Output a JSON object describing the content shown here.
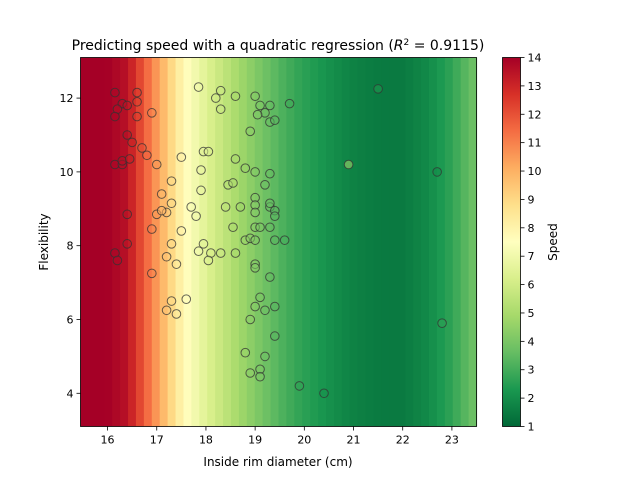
{
  "chart_data": {
    "type": "scatter",
    "title": "Predicting speed with a quadratic regression (R² = 0.9115)",
    "title_prefix": "Predicting speed with a quadratic regression (",
    "title_r2_label": "R",
    "title_r2_exp": "2",
    "title_r2_value": " = 0.9115)",
    "xlabel": "Inside rim diameter (cm)",
    "ylabel": "Flexibility",
    "colorbar_label": "Speed",
    "xlim": [
      15.45,
      23.5
    ],
    "ylim": [
      3.1,
      13.1
    ],
    "clim": [
      1,
      14
    ],
    "colormap": "RdYlGn_r",
    "xticks": [
      16,
      17,
      18,
      19,
      20,
      21,
      22,
      23
    ],
    "yticks": [
      4,
      6,
      8,
      10,
      12
    ],
    "cticks": [
      1,
      2,
      3,
      4,
      5,
      6,
      7,
      8,
      9,
      10,
      11,
      12,
      13,
      14
    ],
    "colormap_stops": [
      "#006837",
      "#1a9850",
      "#66bd63",
      "#a6d96a",
      "#d9ef8b",
      "#ffffbf",
      "#fee08b",
      "#fdae61",
      "#f46d43",
      "#d73027",
      "#a50026"
    ],
    "model": {
      "description": "speed varies with inside rim diameter only (background bands)",
      "diameter": [
        15.45,
        16.0,
        16.4,
        16.6,
        16.9,
        17.2,
        17.5,
        17.8,
        18.1,
        18.4,
        18.7,
        19.0,
        19.3,
        19.6,
        19.9,
        20.2,
        20.6,
        21.0,
        21.5,
        22.0,
        22.5,
        23.0,
        23.5
      ],
      "speed": [
        14,
        14,
        13.5,
        12.5,
        11,
        9.5,
        8,
        7,
        6.2,
        5.5,
        4.8,
        4.2,
        3.6,
        3.1,
        2.7,
        2.4,
        2.0,
        1.7,
        1.5,
        1.5,
        1.9,
        2.7,
        3.9
      ]
    },
    "points": [
      {
        "x": 16.15,
        "y": 12.15,
        "speed": 13.8
      },
      {
        "x": 16.3,
        "y": 11.85,
        "speed": 13.7
      },
      {
        "x": 16.6,
        "y": 12.15,
        "speed": 12.5
      },
      {
        "x": 16.6,
        "y": 11.9,
        "speed": 12.4
      },
      {
        "x": 16.2,
        "y": 11.7,
        "speed": 13.6
      },
      {
        "x": 16.4,
        "y": 11.8,
        "speed": 13.4
      },
      {
        "x": 16.15,
        "y": 11.5,
        "speed": 13.8
      },
      {
        "x": 16.6,
        "y": 11.5,
        "speed": 12.4
      },
      {
        "x": 16.9,
        "y": 11.6,
        "speed": 11.0
      },
      {
        "x": 16.4,
        "y": 11.0,
        "speed": 13.5
      },
      {
        "x": 16.5,
        "y": 10.8,
        "speed": 13.0
      },
      {
        "x": 16.7,
        "y": 10.65,
        "speed": 12.0
      },
      {
        "x": 16.8,
        "y": 10.45,
        "speed": 11.6
      },
      {
        "x": 16.15,
        "y": 10.2,
        "speed": 13.8
      },
      {
        "x": 16.3,
        "y": 10.2,
        "speed": 13.6
      },
      {
        "x": 16.3,
        "y": 10.3,
        "speed": 13.6
      },
      {
        "x": 16.45,
        "y": 10.35,
        "speed": 13.2
      },
      {
        "x": 17.0,
        "y": 10.2,
        "speed": 10.5
      },
      {
        "x": 17.5,
        "y": 10.4,
        "speed": 8.0
      },
      {
        "x": 17.3,
        "y": 9.75,
        "speed": 9.0
      },
      {
        "x": 17.1,
        "y": 9.4,
        "speed": 10.0
      },
      {
        "x": 17.3,
        "y": 9.15,
        "speed": 9.0
      },
      {
        "x": 17.0,
        "y": 8.85,
        "speed": 10.5
      },
      {
        "x": 17.2,
        "y": 8.9,
        "speed": 9.5
      },
      {
        "x": 17.1,
        "y": 8.95,
        "speed": 10.0
      },
      {
        "x": 16.4,
        "y": 8.85,
        "speed": 13.4
      },
      {
        "x": 16.9,
        "y": 8.45,
        "speed": 11.0
      },
      {
        "x": 17.5,
        "y": 8.4,
        "speed": 8.0
      },
      {
        "x": 17.3,
        "y": 8.05,
        "speed": 9.0
      },
      {
        "x": 16.4,
        "y": 8.05,
        "speed": 13.4
      },
      {
        "x": 16.15,
        "y": 7.8,
        "speed": 13.8
      },
      {
        "x": 16.2,
        "y": 7.6,
        "speed": 13.7
      },
      {
        "x": 17.2,
        "y": 7.7,
        "speed": 9.5
      },
      {
        "x": 17.4,
        "y": 7.5,
        "speed": 8.5
      },
      {
        "x": 16.9,
        "y": 7.25,
        "speed": 11.0
      },
      {
        "x": 17.3,
        "y": 6.5,
        "speed": 9.0
      },
      {
        "x": 17.6,
        "y": 6.55,
        "speed": 7.6
      },
      {
        "x": 17.2,
        "y": 6.25,
        "speed": 9.5
      },
      {
        "x": 17.4,
        "y": 6.15,
        "speed": 8.5
      },
      {
        "x": 17.85,
        "y": 12.3,
        "speed": 7.0
      },
      {
        "x": 18.2,
        "y": 12.0,
        "speed": 6.0
      },
      {
        "x": 18.3,
        "y": 12.2,
        "speed": 5.8
      },
      {
        "x": 18.6,
        "y": 12.05,
        "speed": 5.0
      },
      {
        "x": 18.3,
        "y": 11.7,
        "speed": 5.8
      },
      {
        "x": 19.0,
        "y": 12.05,
        "speed": 4.2
      },
      {
        "x": 19.1,
        "y": 11.8,
        "speed": 4.0
      },
      {
        "x": 19.2,
        "y": 11.6,
        "speed": 3.8
      },
      {
        "x": 19.3,
        "y": 11.8,
        "speed": 3.6
      },
      {
        "x": 19.7,
        "y": 11.85,
        "speed": 3.0
      },
      {
        "x": 19.05,
        "y": 11.55,
        "speed": 4.1
      },
      {
        "x": 19.3,
        "y": 11.35,
        "speed": 3.6
      },
      {
        "x": 19.4,
        "y": 11.4,
        "speed": 3.4
      },
      {
        "x": 18.9,
        "y": 11.1,
        "speed": 4.4
      },
      {
        "x": 17.95,
        "y": 10.55,
        "speed": 6.5
      },
      {
        "x": 18.05,
        "y": 10.55,
        "speed": 6.3
      },
      {
        "x": 18.6,
        "y": 10.35,
        "speed": 5.0
      },
      {
        "x": 18.8,
        "y": 10.1,
        "speed": 4.6
      },
      {
        "x": 19.0,
        "y": 10.0,
        "speed": 4.2
      },
      {
        "x": 19.3,
        "y": 9.95,
        "speed": 3.6
      },
      {
        "x": 17.9,
        "y": 10.05,
        "speed": 6.8
      },
      {
        "x": 18.45,
        "y": 9.65,
        "speed": 5.3
      },
      {
        "x": 18.55,
        "y": 9.7,
        "speed": 5.1
      },
      {
        "x": 17.9,
        "y": 9.5,
        "speed": 6.8
      },
      {
        "x": 19.2,
        "y": 9.65,
        "speed": 3.8
      },
      {
        "x": 19.0,
        "y": 9.3,
        "speed": 4.2
      },
      {
        "x": 17.7,
        "y": 9.05,
        "speed": 7.2
      },
      {
        "x": 18.4,
        "y": 9.05,
        "speed": 5.5
      },
      {
        "x": 18.7,
        "y": 9.05,
        "speed": 4.8
      },
      {
        "x": 19.0,
        "y": 9.1,
        "speed": 4.2
      },
      {
        "x": 19.3,
        "y": 9.05,
        "speed": 3.6
      },
      {
        "x": 19.3,
        "y": 9.15,
        "speed": 3.6
      },
      {
        "x": 19.4,
        "y": 8.95,
        "speed": 3.4
      },
      {
        "x": 19.0,
        "y": 8.9,
        "speed": 4.2
      },
      {
        "x": 19.4,
        "y": 8.8,
        "speed": 3.4
      },
      {
        "x": 17.8,
        "y": 8.8,
        "speed": 7.0
      },
      {
        "x": 18.55,
        "y": 8.5,
        "speed": 5.1
      },
      {
        "x": 19.0,
        "y": 8.5,
        "speed": 4.2
      },
      {
        "x": 19.1,
        "y": 8.5,
        "speed": 4.0
      },
      {
        "x": 19.3,
        "y": 8.5,
        "speed": 3.6
      },
      {
        "x": 18.8,
        "y": 8.15,
        "speed": 4.6
      },
      {
        "x": 18.9,
        "y": 8.2,
        "speed": 4.4
      },
      {
        "x": 19.0,
        "y": 8.15,
        "speed": 4.2
      },
      {
        "x": 19.4,
        "y": 8.15,
        "speed": 3.4
      },
      {
        "x": 19.6,
        "y": 8.15,
        "speed": 3.1
      },
      {
        "x": 17.95,
        "y": 8.05,
        "speed": 6.5
      },
      {
        "x": 17.85,
        "y": 7.85,
        "speed": 7.0
      },
      {
        "x": 18.1,
        "y": 7.8,
        "speed": 6.2
      },
      {
        "x": 18.3,
        "y": 7.8,
        "speed": 5.8
      },
      {
        "x": 18.6,
        "y": 7.8,
        "speed": 5.0
      },
      {
        "x": 18.05,
        "y": 7.6,
        "speed": 6.3
      },
      {
        "x": 19.0,
        "y": 7.5,
        "speed": 4.2
      },
      {
        "x": 19.0,
        "y": 7.4,
        "speed": 4.2
      },
      {
        "x": 19.3,
        "y": 7.15,
        "speed": 3.6
      },
      {
        "x": 19.1,
        "y": 6.6,
        "speed": 4.0
      },
      {
        "x": 19.0,
        "y": 6.35,
        "speed": 4.2
      },
      {
        "x": 19.2,
        "y": 6.25,
        "speed": 3.8
      },
      {
        "x": 19.4,
        "y": 6.35,
        "speed": 3.4
      },
      {
        "x": 18.9,
        "y": 6.0,
        "speed": 4.4
      },
      {
        "x": 19.4,
        "y": 5.55,
        "speed": 3.4
      },
      {
        "x": 18.8,
        "y": 5.1,
        "speed": 4.6
      },
      {
        "x": 19.2,
        "y": 5.0,
        "speed": 3.8
      },
      {
        "x": 19.1,
        "y": 4.65,
        "speed": 4.0
      },
      {
        "x": 18.9,
        "y": 4.55,
        "speed": 4.4
      },
      {
        "x": 19.1,
        "y": 4.45,
        "speed": 4.0
      },
      {
        "x": 19.9,
        "y": 4.2,
        "speed": 2.7
      },
      {
        "x": 20.4,
        "y": 4.0,
        "speed": 2.2
      },
      {
        "x": 20.9,
        "y": 10.2,
        "speed": 5.0
      },
      {
        "x": 21.5,
        "y": 12.25,
        "speed": 2.4
      },
      {
        "x": 22.7,
        "y": 10.0,
        "speed": 2.0
      },
      {
        "x": 22.8,
        "y": 5.9,
        "speed": 2.7
      }
    ]
  }
}
